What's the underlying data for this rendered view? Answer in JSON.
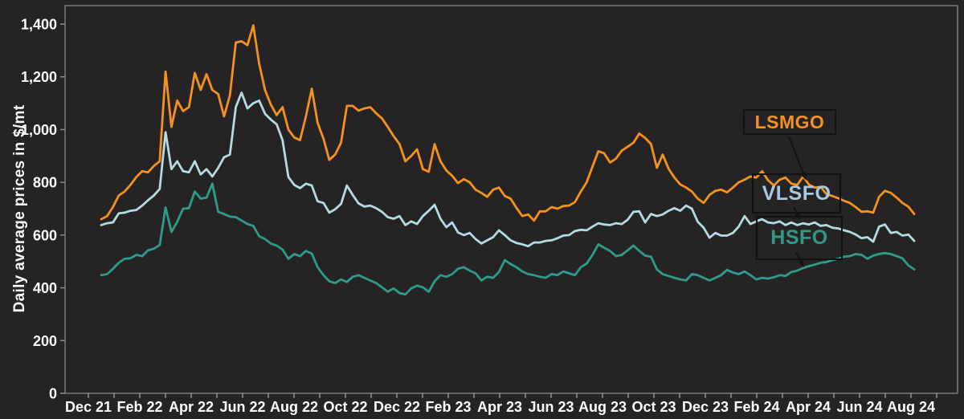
{
  "page": {
    "background_color": "#262324",
    "frame_color": "#8f8f8f",
    "text_color": "#ffffff",
    "leader_line_color": "#141414",
    "callout_border_color": "#121212"
  },
  "chart_data": {
    "type": "line",
    "title": "",
    "xlabel": "",
    "ylabel": "Daily average prices in $/mt",
    "ylim": [
      0,
      1400
    ],
    "y_tick_interval": 200,
    "y_tick_labels": [
      "0",
      "200",
      "400",
      "600",
      "800",
      "1,000",
      "1,200",
      "1,400"
    ],
    "x_tick_labels": [
      "Dec 21",
      "Feb 22",
      "Apr 22",
      "Jun 22",
      "Aug 22",
      "Oct 22",
      "Dec 22",
      "Feb 23",
      "Apr 23",
      "Jun 23",
      "Aug 23",
      "Oct 23",
      "Dec 23",
      "Feb 24",
      "Apr 24",
      "Jun 24",
      "Aug 24"
    ],
    "x_start": "mid-Dec 2021",
    "x_end": "late Aug 2024",
    "x_minor_ticks": "monthly",
    "grid": false,
    "legend_position": "boxed callout labels at right with arrows to lines",
    "sampling": "approx weekly samples of daily series",
    "series": [
      {
        "name": "LSMGO",
        "color": "#F5921E",
        "label_color": "#F5921E",
        "values": [
          660,
          672,
          706,
          750,
          765,
          790,
          820,
          842,
          838,
          862,
          880,
          1220,
          1010,
          1110,
          1070,
          1085,
          1215,
          1150,
          1210,
          1150,
          1135,
          1050,
          1130,
          1330,
          1335,
          1320,
          1395,
          1250,
          1150,
          1095,
          1055,
          1085,
          1000,
          970,
          960,
          1050,
          1155,
          1025,
          965,
          885,
          905,
          950,
          1090,
          1090,
          1072,
          1080,
          1085,
          1062,
          1042,
          1010,
          975,
          945,
          880,
          900,
          925,
          850,
          840,
          945,
          880,
          845,
          825,
          797,
          812,
          800,
          772,
          760,
          745,
          772,
          780,
          748,
          738,
          703,
          672,
          678,
          655,
          690,
          690,
          706,
          700,
          710,
          712,
          725,
          765,
          800,
          860,
          918,
          910,
          875,
          890,
          920,
          935,
          950,
          985,
          968,
          945,
          855,
          905,
          852,
          818,
          792,
          780,
          765,
          738,
          722,
          752,
          768,
          772,
          762,
          780,
          800,
          810,
          822,
          818,
          842,
          808,
          788,
          810,
          818,
          795,
          790,
          822,
          792,
          780,
          783,
          755,
          748,
          740,
          730,
          722,
          706,
          688,
          690,
          685,
          745,
          768,
          760,
          742,
          722,
          708,
          680
        ]
      },
      {
        "name": "VLSFO",
        "color": "#B2DBE2",
        "label_color": "#A6C9E2",
        "values": [
          638,
          645,
          648,
          682,
          685,
          692,
          695,
          712,
          732,
          750,
          775,
          990,
          850,
          880,
          842,
          838,
          880,
          830,
          850,
          822,
          855,
          895,
          905,
          1085,
          1140,
          1080,
          1100,
          1110,
          1060,
          1038,
          1020,
          960,
          820,
          790,
          778,
          795,
          788,
          728,
          722,
          685,
          698,
          718,
          788,
          752,
          720,
          708,
          712,
          702,
          688,
          668,
          662,
          672,
          638,
          652,
          642,
          672,
          692,
          715,
          662,
          630,
          648,
          610,
          600,
          608,
          585,
          568,
          580,
          592,
          618,
          600,
          580,
          570,
          565,
          558,
          572,
          572,
          578,
          580,
          588,
          598,
          600,
          615,
          620,
          618,
          632,
          645,
          640,
          638,
          645,
          642,
          658,
          688,
          690,
          648,
          680,
          672,
          678,
          692,
          702,
          692,
          712,
          700,
          650,
          628,
          590,
          608,
          598,
          598,
          608,
          632,
          672,
          642,
          652,
          660,
          648,
          645,
          652,
          638,
          648,
          638,
          645,
          640,
          648,
          635,
          638,
          628,
          625,
          618,
          612,
          602,
          588,
          592,
          575,
          632,
          640,
          608,
          612,
          598,
          602,
          578
        ]
      },
      {
        "name": "HSFO",
        "color": "#2D9C8A",
        "label_color": "#319889",
        "values": [
          448,
          452,
          472,
          495,
          510,
          512,
          525,
          520,
          542,
          548,
          562,
          705,
          612,
          650,
          700,
          702,
          765,
          738,
          742,
          795,
          688,
          680,
          670,
          668,
          655,
          642,
          635,
          596,
          585,
          568,
          560,
          545,
          510,
          528,
          520,
          540,
          530,
          478,
          448,
          425,
          418,
          432,
          422,
          442,
          448,
          438,
          428,
          418,
          402,
          385,
          398,
          380,
          375,
          398,
          408,
          402,
          385,
          425,
          448,
          442,
          452,
          472,
          478,
          465,
          455,
          428,
          442,
          438,
          460,
          505,
          490,
          478,
          462,
          452,
          448,
          442,
          438,
          452,
          448,
          462,
          455,
          448,
          478,
          492,
          525,
          565,
          552,
          540,
          520,
          525,
          542,
          560,
          540,
          522,
          518,
          470,
          452,
          445,
          438,
          432,
          428,
          452,
          448,
          438,
          428,
          438,
          448,
          468,
          458,
          452,
          462,
          448,
          432,
          438,
          435,
          440,
          448,
          445,
          460,
          465,
          475,
          482,
          488,
          495,
          498,
          505,
          510,
          518,
          520,
          528,
          525,
          510,
          522,
          528,
          532,
          528,
          520,
          512,
          485,
          470
        ]
      }
    ]
  }
}
